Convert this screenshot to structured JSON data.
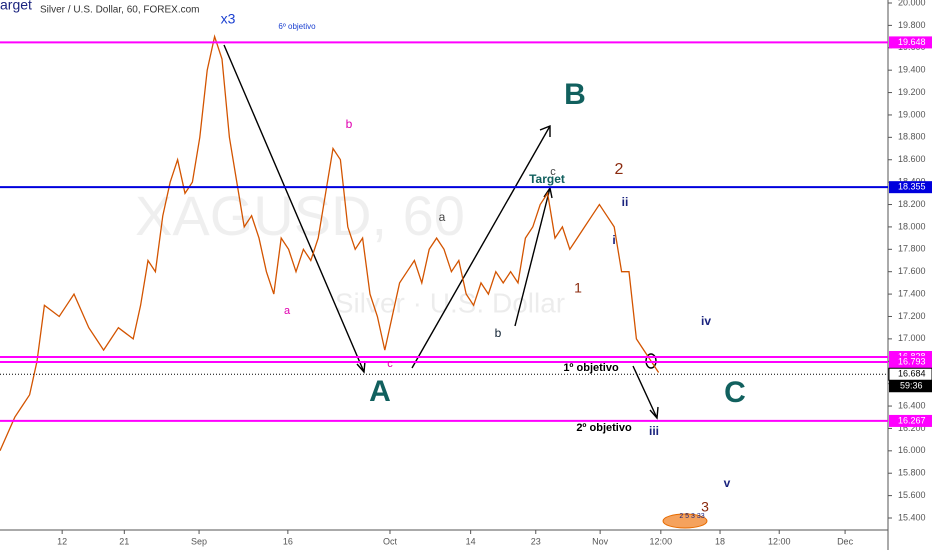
{
  "chart_data": {
    "type": "line",
    "title": "Silver / U.S. Dollar, 60, FOREX.com",
    "watermark": "XAGUSD, 60",
    "watermark_subtitle": "Silver · U.S. Dollar",
    "x": [
      0,
      1,
      2,
      3,
      4,
      5,
      6,
      7,
      8,
      9,
      10,
      11,
      12,
      13,
      14,
      15,
      16,
      17,
      18,
      19,
      20,
      21,
      22,
      23,
      24,
      25,
      26,
      27,
      28,
      29,
      30,
      31,
      32,
      33,
      34,
      35,
      36,
      37,
      38,
      39,
      40,
      41,
      42,
      43,
      44,
      45,
      46,
      47,
      48,
      49,
      50,
      51,
      52,
      53,
      54,
      55,
      56,
      57,
      58,
      59,
      60,
      61,
      62,
      63,
      64,
      65,
      66,
      67,
      68,
      69,
      70,
      71,
      72,
      73,
      74,
      75,
      76,
      77,
      78,
      79,
      80,
      81,
      82,
      83,
      84,
      85,
      86,
      87,
      88,
      89
    ],
    "series": [
      {
        "name": "XAGUSD",
        "color": "#d35400",
        "values": [
          16.0,
          16.15,
          16.3,
          16.4,
          16.5,
          16.8,
          17.3,
          17.25,
          17.2,
          17.3,
          17.4,
          17.25,
          17.1,
          17.0,
          16.9,
          17.0,
          17.1,
          17.05,
          17.0,
          17.3,
          17.7,
          17.6,
          18.1,
          18.4,
          18.6,
          18.3,
          18.4,
          18.8,
          19.4,
          19.7,
          19.5,
          18.8,
          18.4,
          18.0,
          18.1,
          17.9,
          17.6,
          17.4,
          17.9,
          17.8,
          17.6,
          17.8,
          17.7,
          17.9,
          18.3,
          18.7,
          18.6,
          18.0,
          17.8,
          17.9,
          17.4,
          17.2,
          16.9,
          17.2,
          17.5,
          17.6,
          17.7,
          17.5,
          17.8,
          17.9,
          17.8,
          17.6,
          17.7,
          17.4,
          17.3,
          17.5,
          17.4,
          17.6,
          17.5,
          17.6,
          17.5,
          17.9,
          18.0,
          18.2,
          18.3,
          17.9,
          18.0,
          17.8,
          17.9,
          18.0,
          18.1,
          18.2,
          18.1,
          18.0,
          17.6,
          17.6,
          17.0,
          16.9,
          16.8,
          16.7
        ]
      }
    ],
    "xlim": [
      0,
      120
    ],
    "xticks": [
      {
        "value": 8.4,
        "label": "12"
      },
      {
        "value": 16.8,
        "label": "21"
      },
      {
        "value": 26.9,
        "label": "Sep"
      },
      {
        "value": 38.9,
        "label": "16"
      },
      {
        "value": 52.7,
        "label": "Oct"
      },
      {
        "value": 63.6,
        "label": "14"
      },
      {
        "value": 72.4,
        "label": "23"
      },
      {
        "value": 81.1,
        "label": "Nov"
      },
      {
        "value": 89.3,
        "label": "12:00"
      },
      {
        "value": 97.3,
        "label": "18"
      },
      {
        "value": 105.3,
        "label": "12:00"
      },
      {
        "value": 114.2,
        "label": "Dec"
      }
    ],
    "ylim": [
      15.4,
      20.0
    ],
    "yticks": [
      {
        "value": 15.4,
        "label": "15.400"
      },
      {
        "value": 15.6,
        "label": "15.600"
      },
      {
        "value": 15.8,
        "label": "15.800"
      },
      {
        "value": 16.0,
        "label": "16.000"
      },
      {
        "value": 16.2,
        "label": "16.200"
      },
      {
        "value": 16.4,
        "label": "16.400"
      },
      {
        "value": 16.6,
        "label": "16.600"
      },
      {
        "value": 16.8,
        "label": "16.800"
      },
      {
        "value": 17.0,
        "label": "17.000"
      },
      {
        "value": 17.2,
        "label": "17.200"
      },
      {
        "value": 17.4,
        "label": "17.400"
      },
      {
        "value": 17.6,
        "label": "17.600"
      },
      {
        "value": 17.8,
        "label": "17.800"
      },
      {
        "value": 18.0,
        "label": "18.000"
      },
      {
        "value": 18.2,
        "label": "18.200"
      },
      {
        "value": 18.4,
        "label": "18.400"
      },
      {
        "value": 18.6,
        "label": "18.600"
      },
      {
        "value": 18.8,
        "label": "18.800"
      },
      {
        "value": 19.0,
        "label": "19.000"
      },
      {
        "value": 19.2,
        "label": "19.200"
      },
      {
        "value": 19.4,
        "label": "19.400"
      },
      {
        "value": 19.6,
        "label": "19.600"
      },
      {
        "value": 19.8,
        "label": "19.800"
      },
      {
        "value": 20.0,
        "label": "20.000"
      }
    ],
    "levels": [
      {
        "value": 19.648,
        "color": "#ff00ff"
      },
      {
        "value": 18.355,
        "color": "#0000dd"
      },
      {
        "value": 16.838,
        "color": "#ff00ff"
      },
      {
        "value": 16.793,
        "color": "#ff00ff"
      },
      {
        "value": 16.684,
        "color": "#000000"
      },
      {
        "value": 16.267,
        "color": "#ff00ff"
      }
    ],
    "countdown": "59:36",
    "annotations": [
      "arget",
      "x3",
      "6º objetivo",
      "B",
      "A",
      "C",
      "b",
      "a",
      "c",
      "a",
      "b",
      "c",
      "Target",
      "2",
      "1",
      "ii",
      "i",
      "iv",
      "iii",
      "v",
      "3",
      "1º objetivo",
      "2º objetivo",
      "2 5 3 33"
    ]
  }
}
